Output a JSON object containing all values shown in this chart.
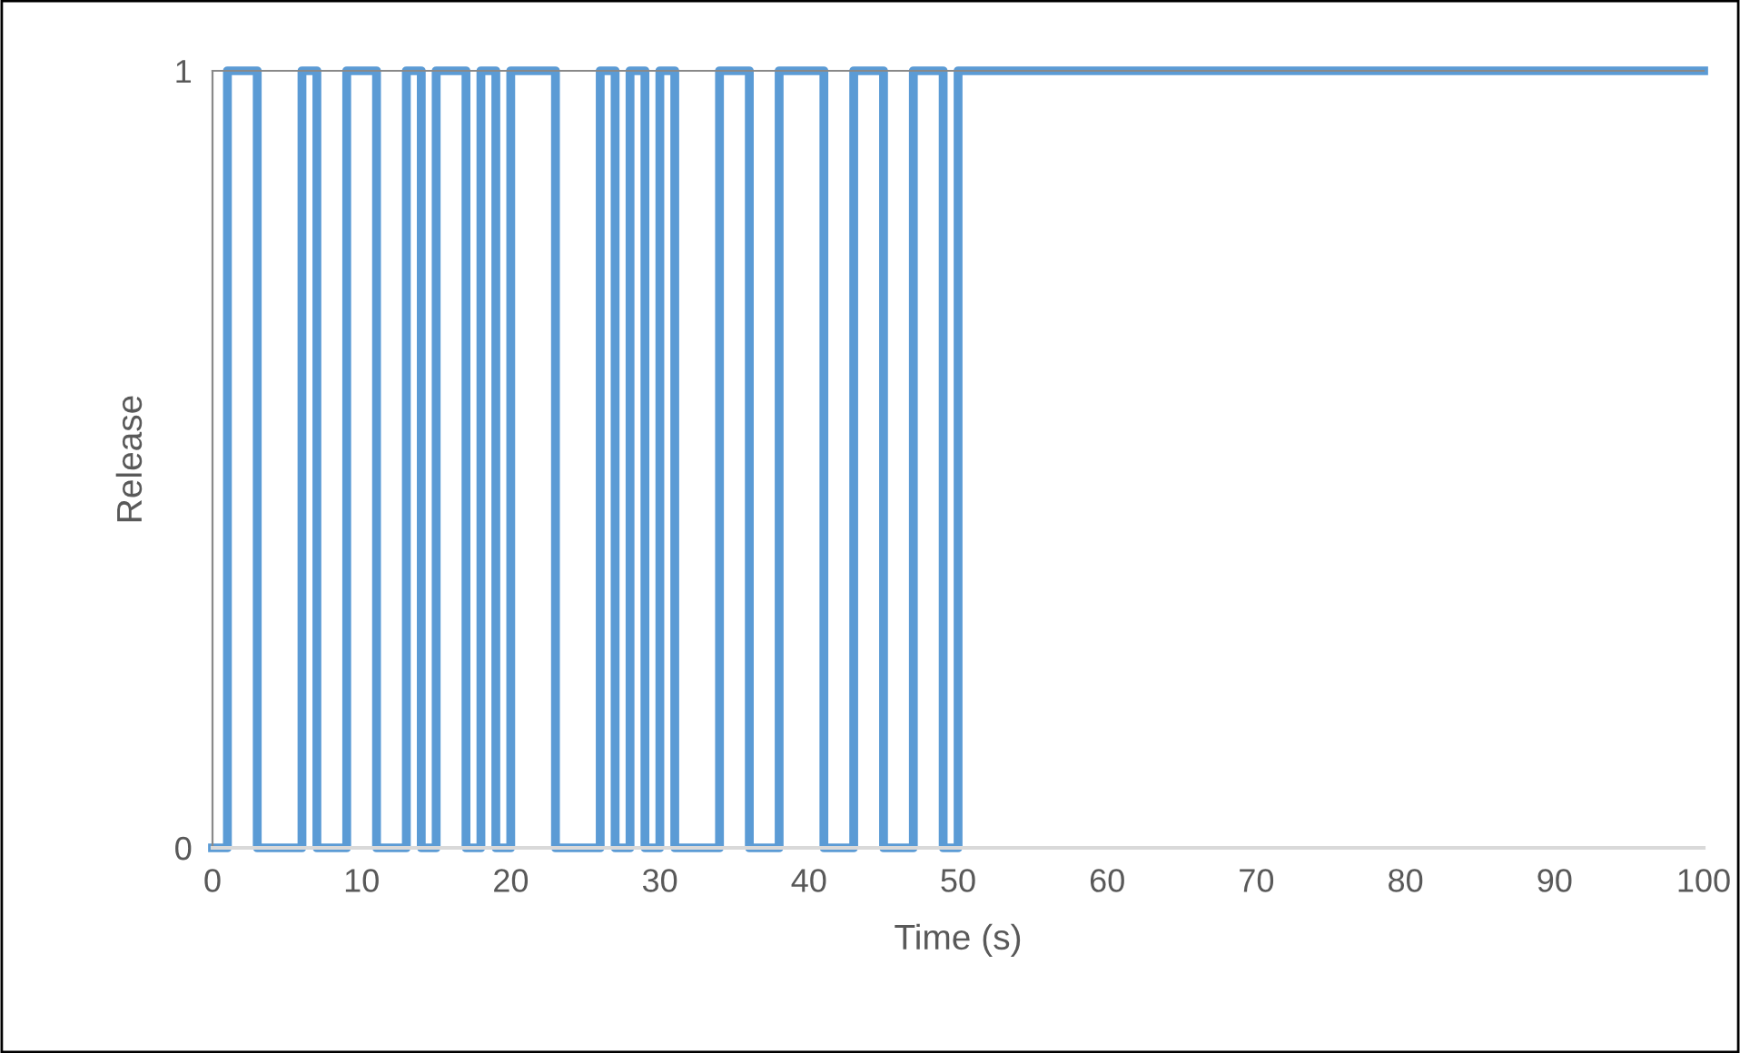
{
  "chart_data": {
    "type": "step",
    "xlabel": "Time (s)",
    "ylabel": "Release",
    "x": [
      0,
      1,
      3,
      6,
      7,
      9,
      11,
      13,
      14,
      15,
      17,
      18,
      19,
      20,
      23,
      26,
      27,
      28,
      29,
      30,
      31,
      34,
      36,
      38,
      41,
      43,
      45,
      47,
      49,
      50,
      100
    ],
    "series": [
      {
        "color": "#5b9bd5",
        "values": [
          0,
          1,
          0,
          1,
          0,
          1,
          0,
          1,
          0,
          1,
          0,
          1,
          0,
          1,
          0,
          1,
          0,
          1,
          0,
          1,
          0,
          1,
          0,
          1,
          0,
          1,
          0,
          1,
          0,
          1,
          1
        ]
      }
    ],
    "xlim": [
      0,
      100
    ],
    "xticks": [
      0,
      10,
      20,
      30,
      40,
      50,
      60,
      70,
      80,
      90,
      100
    ],
    "ylim": [
      0,
      1
    ],
    "yticks": [
      0,
      1
    ],
    "grid": false
  }
}
